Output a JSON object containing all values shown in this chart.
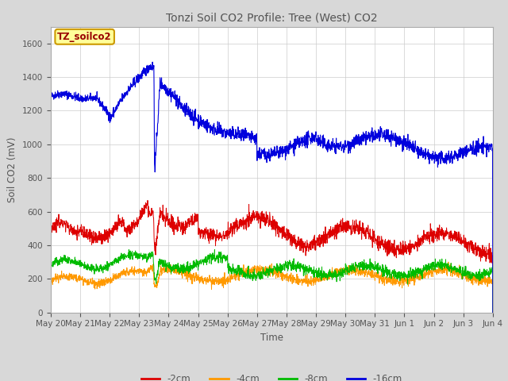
{
  "title": "Tonzi Soil CO2 Profile: Tree (West) CO2",
  "ylabel": "Soil CO2 (mV)",
  "xlabel": "Time",
  "legend_label": "TZ_soilco2",
  "series_labels": [
    "-2cm",
    "-4cm",
    "-8cm",
    "-16cm"
  ],
  "series_colors": [
    "#dd0000",
    "#ff9900",
    "#00bb00",
    "#0000dd"
  ],
  "ylim": [
    0,
    1700
  ],
  "yticks": [
    0,
    200,
    400,
    600,
    800,
    1000,
    1200,
    1400,
    1600
  ],
  "date_labels": [
    "May 20",
    "May 21",
    "May 22",
    "May 23",
    "May 24",
    "May 25",
    "May 26",
    "May 27",
    "May 28",
    "May 29",
    "May 30",
    "May 31",
    "Jun 1",
    "Jun 2",
    "Jun 3",
    "Jun 4"
  ],
  "background_color": "#d8d8d8",
  "plot_bg_color": "#ffffff",
  "legend_box_color": "#cc9900",
  "legend_box_bg": "#ffff99",
  "title_color": "#555555",
  "n_points": 2000
}
